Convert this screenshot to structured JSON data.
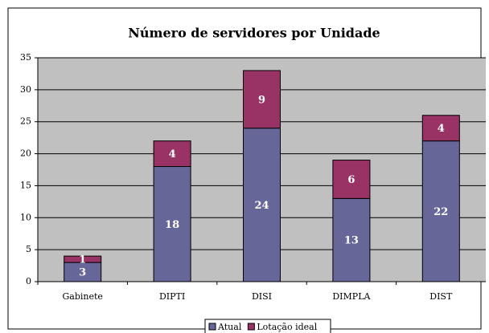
{
  "chart_data": {
    "type": "stacked_bar",
    "title": "Número de servidores por Unidade",
    "categories": [
      "Gabinete",
      "DIPTI",
      "DISI",
      "DIMPLA",
      "DIST"
    ],
    "series": [
      {
        "name": "Atual",
        "color": "#666699",
        "values": [
          3,
          18,
          24,
          13,
          22
        ]
      },
      {
        "name": "Lotação ideal",
        "color": "#993366",
        "values": [
          1,
          4,
          9,
          6,
          4
        ]
      }
    ],
    "ylim": [
      0,
      35
    ],
    "yticks": [
      0,
      5,
      10,
      15,
      20,
      25,
      30,
      35
    ],
    "grid": true,
    "legend": "bottom"
  }
}
